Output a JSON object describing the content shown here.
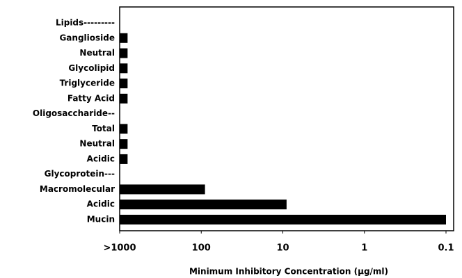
{
  "chart_data": {
    "type": "bar",
    "orientation": "horizontal",
    "xlabel": "Minimum Inhibitory Concentration (µg/ml)",
    "categories": [
      "Lipids---------",
      "Ganglioside",
      "Neutral",
      "Glycolipid",
      "Triglyceride",
      "Fatty  Acid",
      "Oligosaccharide--",
      "Total",
      "Neutral",
      "Acidic",
      "Glycoprotein---",
      "Macromolecular",
      "Acidic",
      "Mucin"
    ],
    "values": [
      null,
      800,
      800,
      800,
      800,
      800,
      null,
      800,
      800,
      800,
      null,
      90,
      9,
      0.1
    ],
    "color": "#000000",
    "xscale": "log",
    "xlim": [
      1000,
      0.1
    ],
    "xticks": [
      {
        "value": 1000,
        "label": ">1000"
      },
      100,
      10,
      1,
      0.1
    ]
  }
}
